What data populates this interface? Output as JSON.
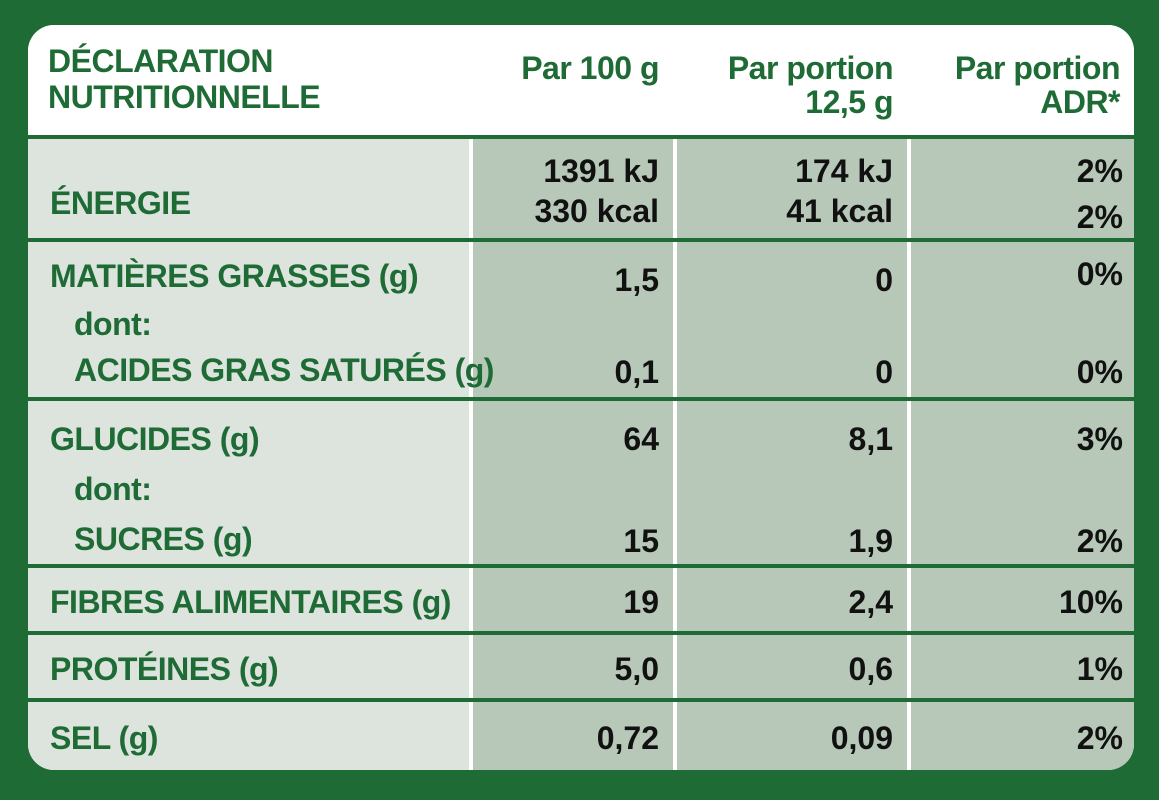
{
  "header": {
    "title_line1": "DÉCLARATION",
    "title_line2": "NUTRITIONNELLE",
    "col1": "Par 100 g",
    "col2_line1": "Par portion",
    "col2_line2": "12,5 g",
    "col3_line1": "Par portion",
    "col3_line2": "ADR*"
  },
  "rows": {
    "energie": {
      "label": "ÉNERGIE",
      "v100_line1": "1391 kJ",
      "v100_line2": "330 kcal",
      "vportion_line1": "174 kJ",
      "vportion_line2": "41 kcal",
      "adr_line1": "2%",
      "adr_line2": "2%"
    },
    "matieres_grasses": {
      "label": "MATIÈRES GRASSES (g)",
      "dont": "dont:",
      "sub_label": "ACIDES GRAS SATURÉS (g)",
      "v100": "1,5",
      "vportion": "0",
      "adr": "0%",
      "sub_v100": "0,1",
      "sub_vportion": "0",
      "sub_adr": "0%"
    },
    "glucides": {
      "label": "GLUCIDES (g)",
      "dont": "dont:",
      "sub_label": "SUCRES (g)",
      "v100": "64",
      "vportion": "8,1",
      "adr": "3%",
      "sub_v100": "15",
      "sub_vportion": "1,9",
      "sub_adr": "2%"
    },
    "fibres": {
      "label": "FIBRES ALIMENTAIRES (g)",
      "v100": "19",
      "vportion": "2,4",
      "adr": "10%"
    },
    "proteines": {
      "label": "PROTÉINES (g)",
      "v100": "5,0",
      "vportion": "0,6",
      "adr": "1%"
    },
    "sel": {
      "label": "SEL (g)",
      "v100": "0,72",
      "vportion": "0,09",
      "adr": "2%"
    }
  },
  "colors": {
    "brand_green": "#1e6b35",
    "label_bg": "#dde3dd",
    "value_bg": "#b7c8b8"
  }
}
